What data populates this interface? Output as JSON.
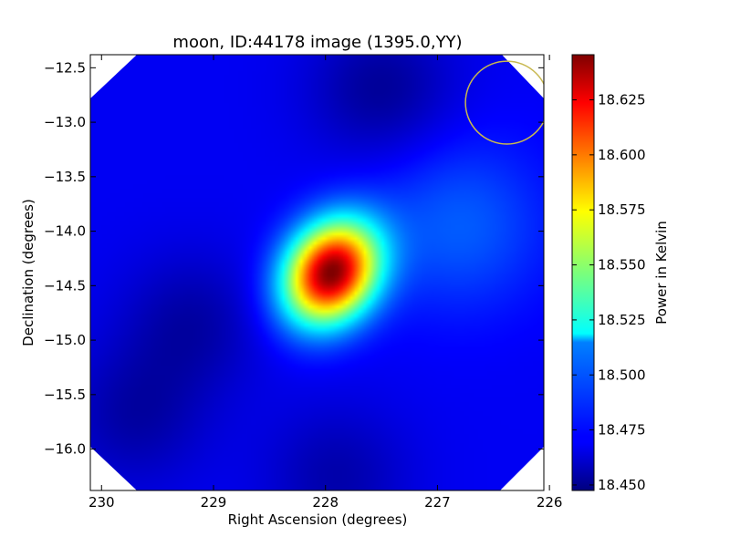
{
  "chart_data": {
    "type": "heatmap",
    "title": "moon, ID:44178 image (1395.0,YY)",
    "xlabel": "Right Ascension (degrees)",
    "ylabel": "Declination (degrees)",
    "colorbar_label": "Power in Kelvin",
    "colormap": "jet",
    "xlim": [
      230.1,
      226.05
    ],
    "ylim": [
      -16.38,
      -12.38
    ],
    "x_ticks": [
      {
        "value": 230,
        "label": "230"
      },
      {
        "value": 229,
        "label": "229"
      },
      {
        "value": 228,
        "label": "228"
      },
      {
        "value": 227,
        "label": "227"
      },
      {
        "value": 226,
        "label": "226"
      }
    ],
    "y_ticks": [
      {
        "value": -12.5,
        "label": "−12.5"
      },
      {
        "value": -13.0,
        "label": "−13.0"
      },
      {
        "value": -13.5,
        "label": "−13.5"
      },
      {
        "value": -14.0,
        "label": "−14.0"
      },
      {
        "value": -14.5,
        "label": "−14.5"
      },
      {
        "value": -15.0,
        "label": "−15.0"
      },
      {
        "value": -15.5,
        "label": "−15.5"
      },
      {
        "value": -16.0,
        "label": "−16.0"
      }
    ],
    "colorbar_range": [
      18.4475,
      18.6455
    ],
    "colorbar_ticks": [
      {
        "value": 18.45,
        "label": "18.450"
      },
      {
        "value": 18.475,
        "label": "18.475"
      },
      {
        "value": 18.5,
        "label": "18.500"
      },
      {
        "value": 18.525,
        "label": "18.525"
      },
      {
        "value": 18.55,
        "label": "18.550"
      },
      {
        "value": 18.575,
        "label": "18.575"
      },
      {
        "value": 18.6,
        "label": "18.600"
      },
      {
        "value": 18.625,
        "label": "18.625"
      }
    ],
    "field": {
      "background": 18.47,
      "peak": {
        "ra": 227.95,
        "dec": -14.38,
        "value": 18.645
      },
      "secondary_bright": {
        "ra": 226.8,
        "dec": -13.95,
        "value": 18.49
      },
      "dark_regions": [
        {
          "ra": 227.5,
          "dec": -12.7,
          "value": 18.452
        },
        {
          "ra": 229.2,
          "dec": -14.85,
          "value": 18.455
        },
        {
          "ra": 229.7,
          "dec": -15.7,
          "value": 18.455
        },
        {
          "ra": 227.9,
          "dec": -16.25,
          "value": 18.456
        }
      ]
    },
    "beam_circle": {
      "ra": 226.38,
      "dec": -12.82,
      "radius_deg": 0.37,
      "color": "#c8b850"
    }
  }
}
